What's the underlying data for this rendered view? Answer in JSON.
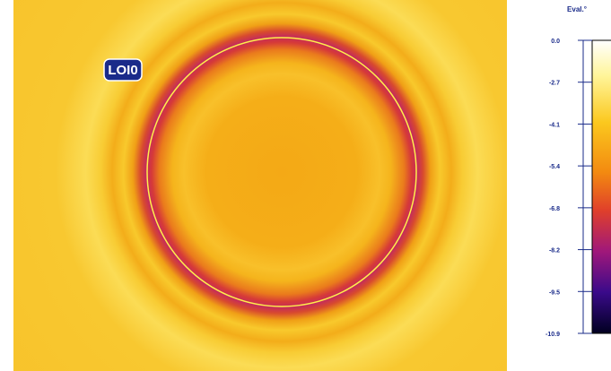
{
  "image": {
    "roi_label": "LOI0"
  },
  "colorbar": {
    "title": "Eval.°",
    "ticks": [
      "0.0",
      "-2.7",
      "-4.1",
      "-5.4",
      "-6.8",
      "-8.2",
      "-9.5",
      "-10.9"
    ]
  }
}
